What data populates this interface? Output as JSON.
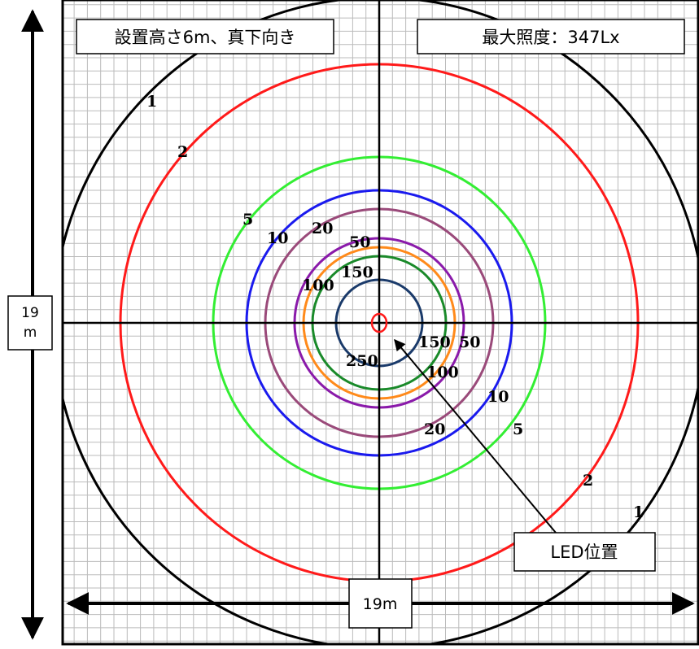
{
  "header": {
    "setup_label": "設置高さ6m、真下向き",
    "max_lux_label": "最大照度：347Lx"
  },
  "dimensions": {
    "width_label": "19m",
    "height_label_line1": "19",
    "height_label_line2": "m"
  },
  "callout": {
    "led_label": "LED位置"
  },
  "colors": {
    "lux_1": "#000000",
    "lux_2": "#ff1a1a",
    "lux_5": "#33ee33",
    "lux_10": "#1a1aee",
    "lux_20": "#9a4a7a",
    "lux_50": "#8a1aaa",
    "lux_100": "#ff8a1a",
    "lux_150": "#1a8a2a",
    "lux_250": "#1a3a6a",
    "led_marker": "#ff1a1a",
    "grid": "#bbbbbb"
  },
  "contours": [
    {
      "lux": 1,
      "labels": [
        "1",
        "1"
      ]
    },
    {
      "lux": 2,
      "labels": [
        "2",
        "2"
      ]
    },
    {
      "lux": 5,
      "labels": [
        "5",
        "5"
      ]
    },
    {
      "lux": 10,
      "labels": [
        "10",
        "10"
      ]
    },
    {
      "lux": 20,
      "labels": [
        "20",
        "20"
      ]
    },
    {
      "lux": 50,
      "labels": [
        "50",
        "50"
      ]
    },
    {
      "lux": 100,
      "labels": [
        "100",
        "100"
      ]
    },
    {
      "lux": 150,
      "labels": [
        "150",
        "150"
      ]
    },
    {
      "lux": 250,
      "labels": [
        "250"
      ]
    }
  ]
}
